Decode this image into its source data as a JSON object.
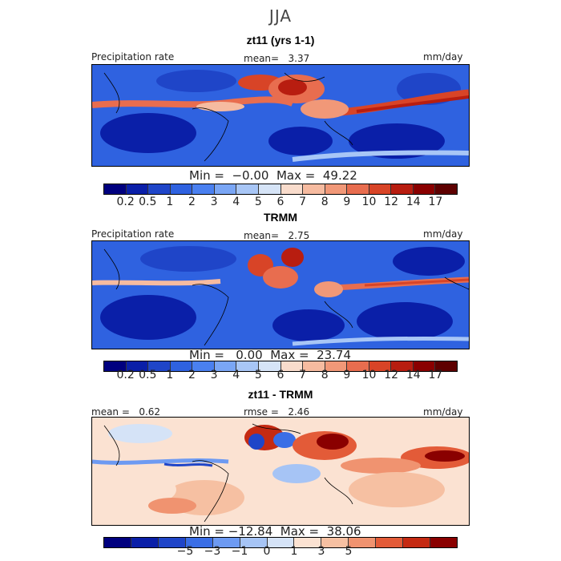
{
  "season": "JJA",
  "panels": [
    {
      "title": "zt11 (yrs 1-1)",
      "left_label": "Precipitation rate",
      "center_label": "mean=   3.37",
      "units": "mm/day",
      "min_max": "Min =  −0.00  Max =  49.22",
      "colorbar_ticks": [
        "0.2",
        "0.5",
        "1",
        "2",
        "3",
        "4",
        "5",
        "6",
        "7",
        "8",
        "9",
        "10",
        "12",
        "14",
        "17"
      ],
      "stats": {
        "mean": 3.37,
        "min": -0.0,
        "max": 49.22
      }
    },
    {
      "title": "TRMM",
      "left_label": "Precipitation rate",
      "center_label": "mean=   2.75",
      "units": "mm/day",
      "min_max": "Min =   0.00  Max =  23.74",
      "colorbar_ticks": [
        "0.2",
        "0.5",
        "1",
        "2",
        "3",
        "4",
        "5",
        "6",
        "7",
        "8",
        "9",
        "10",
        "12",
        "14",
        "17"
      ],
      "stats": {
        "mean": 2.75,
        "min": 0.0,
        "max": 23.74
      }
    },
    {
      "title": "zt11 - TRMM",
      "left_label": "mean =   0.62",
      "center_label": "rmse =   2.46",
      "units": "mm/day",
      "min_max": "Min = −12.84  Max =  38.06",
      "colorbar_ticks": [
        "−5",
        "−3",
        "−1",
        "0",
        "1",
        "3",
        "5"
      ],
      "stats": {
        "mean": 0.62,
        "rmse": 2.46,
        "min": -12.84,
        "max": 38.06
      }
    }
  ],
  "colors": {
    "abs_scale": [
      "#00007f",
      "#0a1fa8",
      "#1f45c8",
      "#2f62e0",
      "#4a80f0",
      "#7aa6f5",
      "#a8c6f6",
      "#d6e4f7",
      "#f9dccc",
      "#f6bba0",
      "#f19878",
      "#e86d4f",
      "#d84427",
      "#b81d10",
      "#8a0000",
      "#5e0000"
    ],
    "diff_scale": [
      "#00007f",
      "#0a1fa8",
      "#1f45c8",
      "#3a6ee6",
      "#6d9af2",
      "#a6c4f5",
      "#d5e3f7",
      "#fbe2d2",
      "#f6c0a2",
      "#f09370",
      "#e35b38",
      "#c52a12",
      "#8a0000"
    ]
  }
}
